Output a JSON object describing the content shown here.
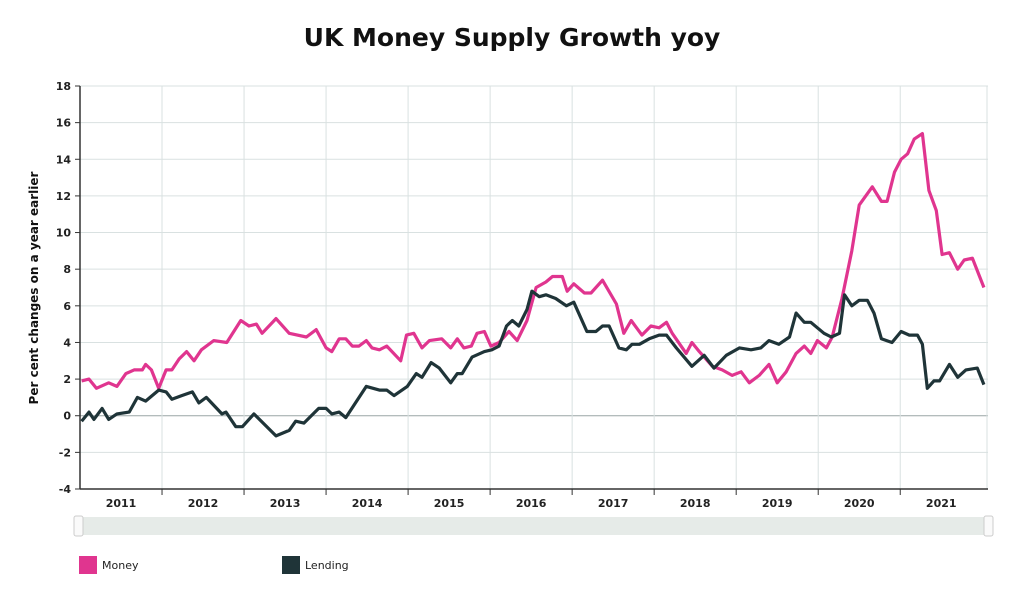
{
  "chart_data": {
    "type": "line",
    "title": "UK Money Supply Growth yoy",
    "xlabel": "",
    "ylabel": "Per cent changes on a year earlier",
    "xlim": [
      2011.0,
      2022.07
    ],
    "ylim": [
      -4,
      18
    ],
    "yticks": [
      -4,
      -2,
      0,
      2,
      4,
      6,
      8,
      10,
      12,
      14,
      16,
      18
    ],
    "xtick_labels": [
      "2011",
      "2012",
      "2013",
      "2014",
      "2015",
      "2016",
      "2017",
      "2018",
      "2019",
      "2020",
      "2021"
    ],
    "grid": true,
    "legend_position": "bottom-left",
    "series": [
      {
        "name": "Money",
        "color": "#e0358f",
        "points": [
          [
            2011.02,
            1.9
          ],
          [
            2011.11,
            2.0
          ],
          [
            2011.2,
            1.5
          ],
          [
            2011.35,
            1.8
          ],
          [
            2011.45,
            1.6
          ],
          [
            2011.56,
            2.3
          ],
          [
            2011.66,
            2.5
          ],
          [
            2011.76,
            2.5
          ],
          [
            2011.8,
            2.8
          ],
          [
            2011.87,
            2.5
          ],
          [
            2011.96,
            1.5
          ],
          [
            2012.05,
            2.5
          ],
          [
            2012.12,
            2.5
          ],
          [
            2012.21,
            3.1
          ],
          [
            2012.3,
            3.5
          ],
          [
            2012.39,
            3.0
          ],
          [
            2012.48,
            3.6
          ],
          [
            2012.63,
            4.1
          ],
          [
            2012.79,
            4.0
          ],
          [
            2012.96,
            5.2
          ],
          [
            2013.06,
            4.9
          ],
          [
            2013.15,
            5.0
          ],
          [
            2013.22,
            4.5
          ],
          [
            2013.39,
            5.3
          ],
          [
            2013.55,
            4.5
          ],
          [
            2013.76,
            4.3
          ],
          [
            2013.88,
            4.7
          ],
          [
            2014.0,
            3.7
          ],
          [
            2014.07,
            3.5
          ],
          [
            2014.16,
            4.2
          ],
          [
            2014.24,
            4.2
          ],
          [
            2014.32,
            3.8
          ],
          [
            2014.4,
            3.8
          ],
          [
            2014.49,
            4.1
          ],
          [
            2014.56,
            3.7
          ],
          [
            2014.65,
            3.6
          ],
          [
            2014.74,
            3.8
          ],
          [
            2014.91,
            3.0
          ],
          [
            2014.98,
            4.4
          ],
          [
            2015.07,
            4.5
          ],
          [
            2015.17,
            3.7
          ],
          [
            2015.26,
            4.1
          ],
          [
            2015.41,
            4.2
          ],
          [
            2015.52,
            3.7
          ],
          [
            2015.6,
            4.2
          ],
          [
            2015.68,
            3.7
          ],
          [
            2015.77,
            3.8
          ],
          [
            2015.84,
            4.5
          ],
          [
            2015.93,
            4.6
          ],
          [
            2016.01,
            3.8
          ],
          [
            2016.11,
            4.0
          ],
          [
            2016.23,
            4.6
          ],
          [
            2016.33,
            4.1
          ],
          [
            2016.45,
            5.2
          ],
          [
            2016.56,
            7.0
          ],
          [
            2016.68,
            7.3
          ],
          [
            2016.76,
            7.6
          ],
          [
            2016.88,
            7.6
          ],
          [
            2016.94,
            6.8
          ],
          [
            2017.02,
            7.2
          ],
          [
            2017.15,
            6.7
          ],
          [
            2017.23,
            6.7
          ],
          [
            2017.37,
            7.4
          ],
          [
            2017.54,
            6.1
          ],
          [
            2017.63,
            4.5
          ],
          [
            2017.72,
            5.2
          ],
          [
            2017.85,
            4.4
          ],
          [
            2017.96,
            4.9
          ],
          [
            2018.06,
            4.8
          ],
          [
            2018.15,
            5.1
          ],
          [
            2018.22,
            4.5
          ],
          [
            2018.39,
            3.4
          ],
          [
            2018.46,
            4.0
          ],
          [
            2018.55,
            3.5
          ],
          [
            2018.71,
            2.7
          ],
          [
            2018.83,
            2.5
          ],
          [
            2018.95,
            2.2
          ],
          [
            2019.06,
            2.4
          ],
          [
            2019.16,
            1.8
          ],
          [
            2019.28,
            2.2
          ],
          [
            2019.4,
            2.8
          ],
          [
            2019.5,
            1.8
          ],
          [
            2019.61,
            2.4
          ],
          [
            2019.73,
            3.4
          ],
          [
            2019.83,
            3.8
          ],
          [
            2019.91,
            3.4
          ],
          [
            2019.99,
            4.1
          ],
          [
            2020.1,
            3.7
          ],
          [
            2020.17,
            4.3
          ],
          [
            2020.29,
            6.4
          ],
          [
            2020.41,
            9.0
          ],
          [
            2020.5,
            11.5
          ],
          [
            2020.66,
            12.5
          ],
          [
            2020.77,
            11.7
          ],
          [
            2020.84,
            11.7
          ],
          [
            2020.93,
            13.3
          ],
          [
            2021.01,
            14.0
          ],
          [
            2021.09,
            14.3
          ],
          [
            2021.17,
            15.1
          ],
          [
            2021.27,
            15.4
          ],
          [
            2021.35,
            12.3
          ],
          [
            2021.44,
            11.2
          ],
          [
            2021.51,
            8.8
          ],
          [
            2021.6,
            8.9
          ],
          [
            2021.7,
            8.0
          ],
          [
            2021.78,
            8.5
          ],
          [
            2021.88,
            8.6
          ],
          [
            2022.02,
            7.0
          ]
        ]
      },
      {
        "name": "Lending",
        "color": "#1f3438",
        "points": [
          [
            2011.02,
            -0.3
          ],
          [
            2011.11,
            0.2
          ],
          [
            2011.17,
            -0.2
          ],
          [
            2011.27,
            0.4
          ],
          [
            2011.35,
            -0.2
          ],
          [
            2011.45,
            0.1
          ],
          [
            2011.6,
            0.2
          ],
          [
            2011.7,
            1.0
          ],
          [
            2011.8,
            0.8
          ],
          [
            2011.96,
            1.4
          ],
          [
            2012.05,
            1.3
          ],
          [
            2012.12,
            0.9
          ],
          [
            2012.24,
            1.1
          ],
          [
            2012.37,
            1.3
          ],
          [
            2012.45,
            0.7
          ],
          [
            2012.54,
            1.0
          ],
          [
            2012.73,
            0.1
          ],
          [
            2012.78,
            0.2
          ],
          [
            2012.9,
            -0.6
          ],
          [
            2012.98,
            -0.6
          ],
          [
            2013.12,
            0.1
          ],
          [
            2013.39,
            -1.1
          ],
          [
            2013.55,
            -0.8
          ],
          [
            2013.63,
            -0.3
          ],
          [
            2013.73,
            -0.4
          ],
          [
            2013.91,
            0.4
          ],
          [
            2014.0,
            0.4
          ],
          [
            2014.07,
            0.1
          ],
          [
            2014.16,
            0.2
          ],
          [
            2014.24,
            -0.1
          ],
          [
            2014.49,
            1.6
          ],
          [
            2014.65,
            1.4
          ],
          [
            2014.74,
            1.4
          ],
          [
            2014.83,
            1.1
          ],
          [
            2014.99,
            1.6
          ],
          [
            2015.1,
            2.3
          ],
          [
            2015.17,
            2.1
          ],
          [
            2015.28,
            2.9
          ],
          [
            2015.38,
            2.6
          ],
          [
            2015.52,
            1.8
          ],
          [
            2015.6,
            2.3
          ],
          [
            2015.66,
            2.3
          ],
          [
            2015.78,
            3.2
          ],
          [
            2015.93,
            3.5
          ],
          [
            2016.02,
            3.6
          ],
          [
            2016.11,
            3.8
          ],
          [
            2016.2,
            4.9
          ],
          [
            2016.27,
            5.2
          ],
          [
            2016.35,
            4.9
          ],
          [
            2016.45,
            5.8
          ],
          [
            2016.51,
            6.8
          ],
          [
            2016.6,
            6.5
          ],
          [
            2016.68,
            6.6
          ],
          [
            2016.8,
            6.4
          ],
          [
            2016.93,
            6.0
          ],
          [
            2017.02,
            6.2
          ],
          [
            2017.18,
            4.6
          ],
          [
            2017.29,
            4.6
          ],
          [
            2017.37,
            4.9
          ],
          [
            2017.45,
            4.9
          ],
          [
            2017.57,
            3.7
          ],
          [
            2017.66,
            3.6
          ],
          [
            2017.73,
            3.9
          ],
          [
            2017.82,
            3.9
          ],
          [
            2017.94,
            4.2
          ],
          [
            2018.06,
            4.4
          ],
          [
            2018.15,
            4.4
          ],
          [
            2018.27,
            3.7
          ],
          [
            2018.46,
            2.7
          ],
          [
            2018.61,
            3.3
          ],
          [
            2018.73,
            2.6
          ],
          [
            2018.88,
            3.3
          ],
          [
            2019.04,
            3.7
          ],
          [
            2019.18,
            3.6
          ],
          [
            2019.3,
            3.7
          ],
          [
            2019.4,
            4.1
          ],
          [
            2019.52,
            3.9
          ],
          [
            2019.65,
            4.3
          ],
          [
            2019.73,
            5.6
          ],
          [
            2019.83,
            5.1
          ],
          [
            2019.91,
            5.1
          ],
          [
            2020.07,
            4.5
          ],
          [
            2020.16,
            4.3
          ],
          [
            2020.26,
            4.5
          ],
          [
            2020.32,
            6.6
          ],
          [
            2020.41,
            6.0
          ],
          [
            2020.5,
            6.3
          ],
          [
            2020.6,
            6.3
          ],
          [
            2020.68,
            5.6
          ],
          [
            2020.77,
            4.2
          ],
          [
            2020.9,
            4.0
          ],
          [
            2021.01,
            4.6
          ],
          [
            2021.11,
            4.4
          ],
          [
            2021.21,
            4.4
          ],
          [
            2021.27,
            3.9
          ],
          [
            2021.33,
            1.5
          ],
          [
            2021.41,
            1.9
          ],
          [
            2021.48,
            1.9
          ],
          [
            2021.6,
            2.8
          ],
          [
            2021.7,
            2.1
          ],
          [
            2021.8,
            2.5
          ],
          [
            2021.94,
            2.6
          ],
          [
            2022.02,
            1.7
          ]
        ]
      }
    ]
  }
}
